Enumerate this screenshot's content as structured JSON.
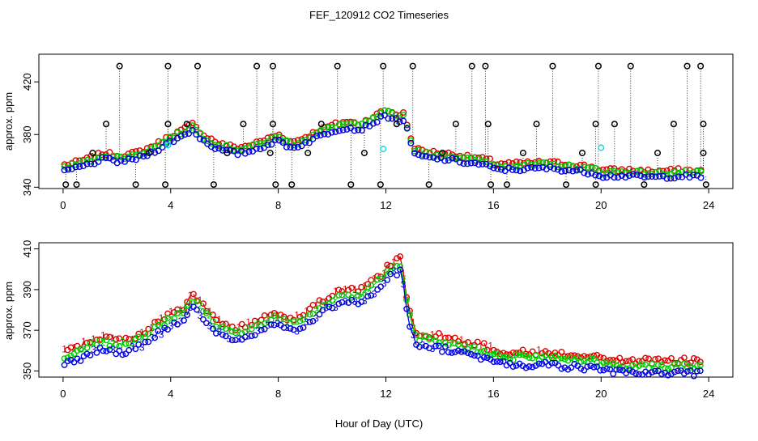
{
  "title": "FEF_120912  CO2 Timeseries",
  "xlabel": "Hour of Day (UTC)",
  "chart_data": [
    {
      "type": "scatter",
      "panel": "top",
      "ylabel": "approx. ppm",
      "xlim": [
        -0.9,
        24.9
      ],
      "ylim": [
        339,
        441
      ],
      "xticks": [
        0,
        4,
        8,
        12,
        16,
        20,
        24
      ],
      "yticks": [
        340,
        380,
        420
      ],
      "colors": {
        "red": "#dd0000",
        "green": "#00cc00",
        "blue": "#0000dd",
        "black": "#000000",
        "cyan": "#00dddd"
      },
      "base_series": {
        "x": [
          0.1,
          0.5,
          1.0,
          1.5,
          2.0,
          2.5,
          3.0,
          3.5,
          4.0,
          4.5,
          4.8,
          5.2,
          5.8,
          6.5,
          7.0,
          7.5,
          8.0,
          8.5,
          9.0,
          9.5,
          10.0,
          10.5,
          11.0,
          11.5,
          12.0,
          12.2,
          12.5,
          12.7,
          12.9,
          13.1,
          13.5,
          14.0,
          14.5,
          15.0,
          15.5,
          15.9,
          16.0,
          17.0,
          18.0,
          19.0,
          19.8,
          20.0,
          21.0,
          22.0,
          23.0,
          23.8
        ],
        "y": [
          354,
          356,
          359,
          363,
          361,
          362,
          365,
          370,
          376,
          381,
          385,
          377,
          370,
          367,
          369,
          373,
          377,
          371,
          375,
          380,
          384,
          387,
          385,
          390,
          396,
          394,
          392,
          393,
          375,
          366,
          364,
          363,
          362,
          360,
          359,
          357,
          355,
          355,
          356,
          354,
          352,
          350,
          350,
          349,
          350,
          349
        ],
        "offsets": {
          "red": 3,
          "green": 1.5,
          "blue": -1.5
        }
      },
      "outliers_black": [
        {
          "x": 0.1,
          "y": 342
        },
        {
          "x": 0.5,
          "y": 342
        },
        {
          "x": 1.1,
          "y": 366
        },
        {
          "x": 1.6,
          "y": 388
        },
        {
          "x": 2.1,
          "y": 432
        },
        {
          "x": 2.7,
          "y": 342
        },
        {
          "x": 3.2,
          "y": 366
        },
        {
          "x": 3.8,
          "y": 342
        },
        {
          "x": 3.9,
          "y": 388
        },
        {
          "x": 3.9,
          "y": 432
        },
        {
          "x": 4.6,
          "y": 388
        },
        {
          "x": 5.0,
          "y": 432
        },
        {
          "x": 5.6,
          "y": 342
        },
        {
          "x": 6.1,
          "y": 366
        },
        {
          "x": 6.7,
          "y": 388
        },
        {
          "x": 7.2,
          "y": 432
        },
        {
          "x": 7.7,
          "y": 366
        },
        {
          "x": 7.8,
          "y": 432
        },
        {
          "x": 7.8,
          "y": 388
        },
        {
          "x": 7.9,
          "y": 342
        },
        {
          "x": 8.5,
          "y": 342
        },
        {
          "x": 9.1,
          "y": 366
        },
        {
          "x": 9.6,
          "y": 388
        },
        {
          "x": 10.2,
          "y": 432
        },
        {
          "x": 10.7,
          "y": 342
        },
        {
          "x": 11.2,
          "y": 366
        },
        {
          "x": 11.8,
          "y": 342
        },
        {
          "x": 11.9,
          "y": 432
        },
        {
          "x": 12.4,
          "y": 388
        },
        {
          "x": 13.0,
          "y": 432
        },
        {
          "x": 13.6,
          "y": 342
        },
        {
          "x": 14.1,
          "y": 366
        },
        {
          "x": 14.6,
          "y": 388
        },
        {
          "x": 15.2,
          "y": 432
        },
        {
          "x": 15.7,
          "y": 432
        },
        {
          "x": 15.8,
          "y": 388
        },
        {
          "x": 15.9,
          "y": 342
        },
        {
          "x": 16.5,
          "y": 342
        },
        {
          "x": 17.1,
          "y": 366
        },
        {
          "x": 17.6,
          "y": 388
        },
        {
          "x": 18.2,
          "y": 432
        },
        {
          "x": 18.7,
          "y": 342
        },
        {
          "x": 19.3,
          "y": 366
        },
        {
          "x": 19.8,
          "y": 342
        },
        {
          "x": 19.8,
          "y": 388
        },
        {
          "x": 19.9,
          "y": 432
        },
        {
          "x": 20.5,
          "y": 388
        },
        {
          "x": 21.1,
          "y": 432
        },
        {
          "x": 21.6,
          "y": 342
        },
        {
          "x": 22.1,
          "y": 366
        },
        {
          "x": 22.7,
          "y": 388
        },
        {
          "x": 23.2,
          "y": 432
        },
        {
          "x": 23.7,
          "y": 432
        },
        {
          "x": 23.8,
          "y": 388
        },
        {
          "x": 23.8,
          "y": 366
        },
        {
          "x": 23.9,
          "y": 342
        }
      ],
      "cyan_points": [
        {
          "x": 11.9,
          "y": 369
        },
        {
          "x": 20.0,
          "y": 370
        },
        {
          "x": 3.9,
          "y": 372
        }
      ]
    },
    {
      "type": "scatter",
      "panel": "bottom",
      "ylabel": "approx. ppm",
      "xlim": [
        -0.9,
        24.9
      ],
      "ylim": [
        347,
        413
      ],
      "xticks": [
        0,
        4,
        8,
        12,
        16,
        20,
        24
      ],
      "yticks": [
        350,
        370,
        390,
        410
      ],
      "glyph_labels": {
        "red": "1",
        "green": "2",
        "blue": "3"
      },
      "base_series": {
        "x": [
          0.1,
          0.5,
          1.0,
          1.5,
          2.0,
          2.5,
          3.0,
          3.5,
          4.0,
          4.5,
          4.8,
          5.2,
          5.8,
          6.5,
          7.0,
          7.5,
          8.0,
          8.5,
          9.0,
          9.5,
          10.0,
          10.5,
          11.0,
          11.5,
          12.0,
          12.3,
          12.6,
          12.7,
          12.9,
          13.1,
          13.5,
          14.0,
          14.5,
          15.0,
          15.5,
          15.9,
          16.0,
          17.0,
          18.0,
          19.0,
          19.8,
          20.0,
          21.0,
          22.0,
          23.0,
          23.8
        ],
        "y": [
          356,
          357,
          361,
          363,
          361,
          362,
          365,
          370,
          374,
          377,
          384,
          378,
          370,
          367,
          369,
          373,
          375,
          371,
          375,
          379,
          384,
          386,
          385,
          390,
          396,
          400,
          401,
          388,
          374,
          365,
          364,
          363,
          362,
          360,
          359,
          357,
          356,
          355,
          355,
          354,
          353,
          352,
          351,
          351,
          351,
          351
        ],
        "offsets": {
          "red": 4,
          "green": 1.5,
          "blue": -2
        }
      }
    }
  ]
}
